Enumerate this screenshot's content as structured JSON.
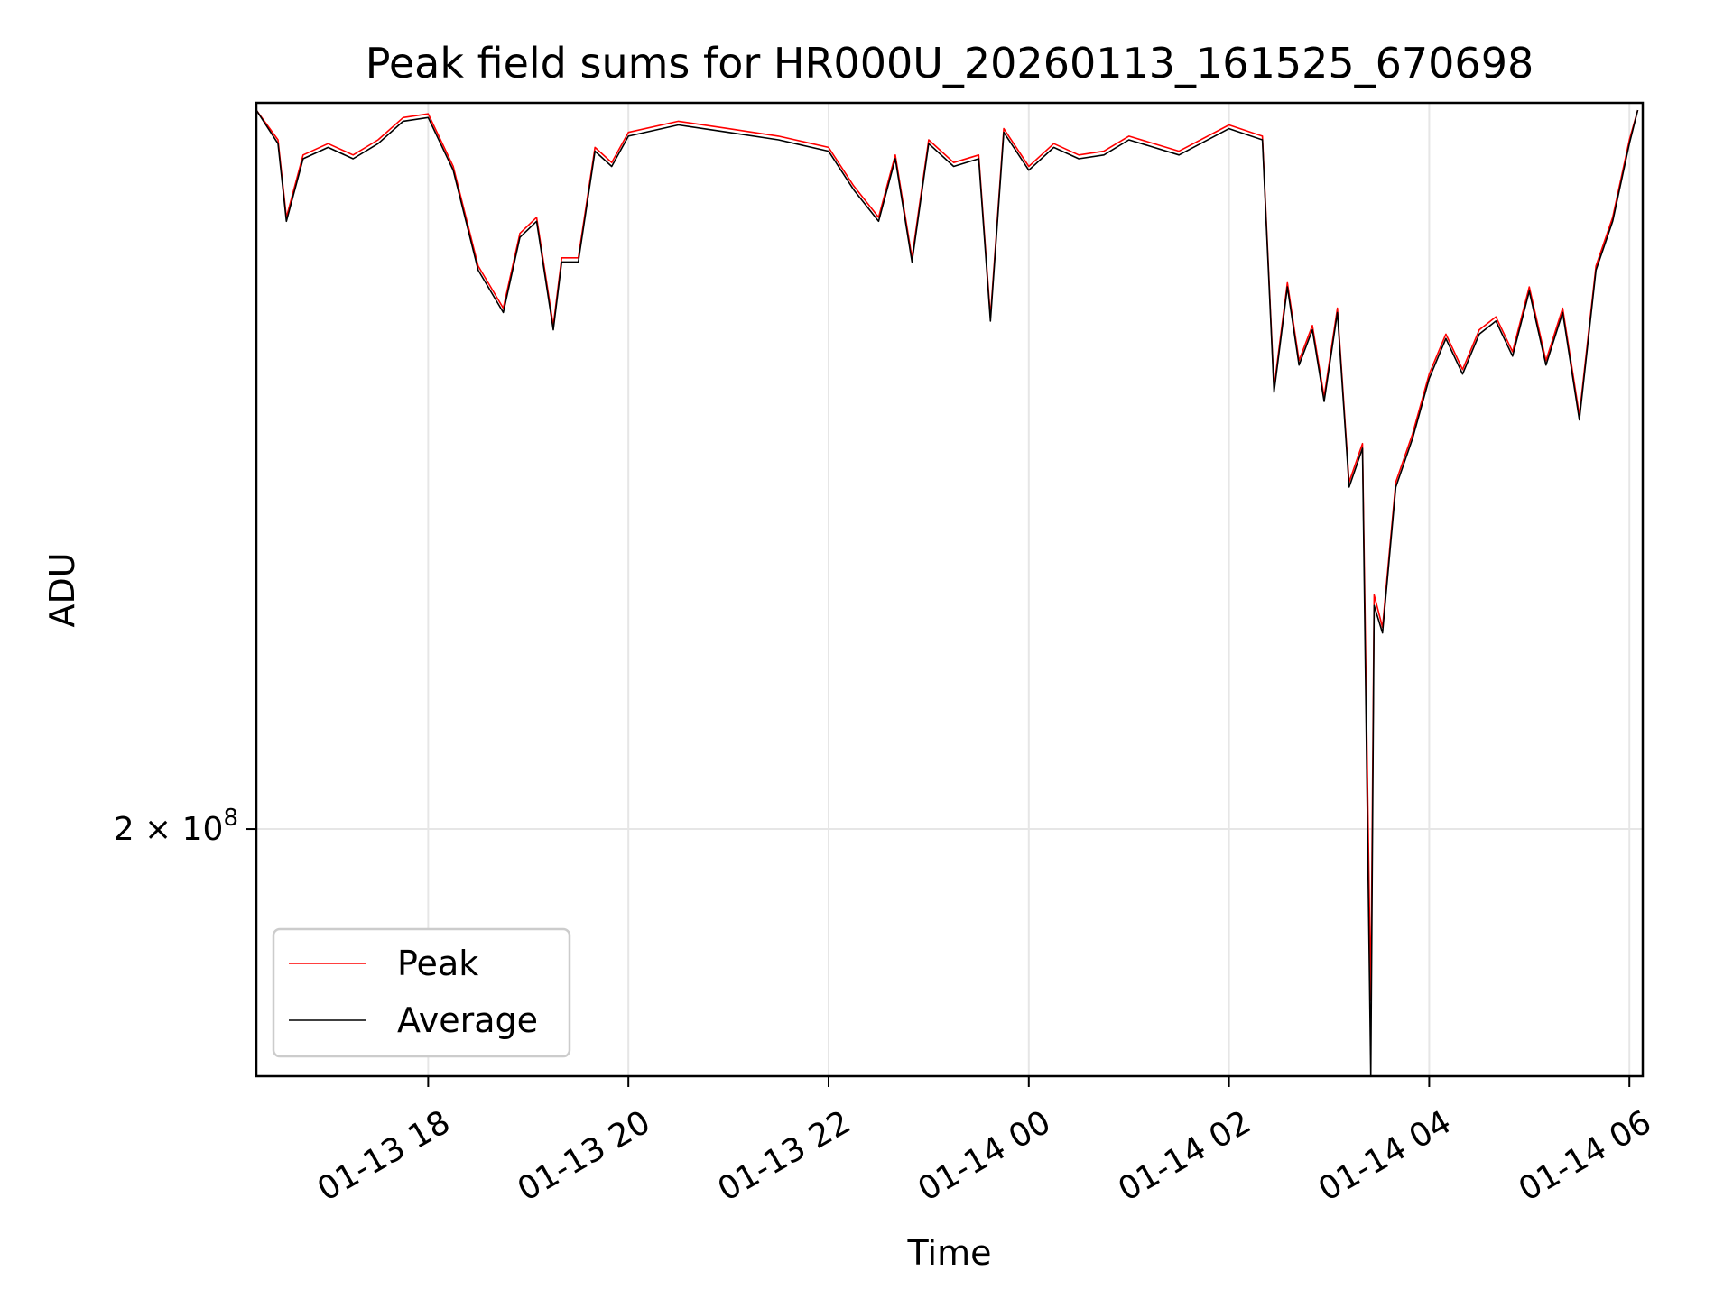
{
  "chart_data": {
    "type": "line",
    "title": "Peak field sums for HR000U_20260113_161525_670698",
    "xlabel": "Time",
    "ylabel": "ADU",
    "y_scale": "log",
    "y_ticks": [
      {
        "value": 200000000,
        "coef": "2",
        "base": "10",
        "exp": "8"
      }
    ],
    "x_ticks": [
      "01-13 18",
      "01-13 20",
      "01-13 22",
      "01-14 00",
      "01-14 02",
      "01-14 04",
      "01-14 06"
    ],
    "x_tick_times": [
      "2026-01-13T18:00",
      "2026-01-13T20:00",
      "2026-01-13T22:00",
      "2026-01-14T00:00",
      "2026-01-14T02:00",
      "2026-01-14T04:00",
      "2026-01-14T06:00"
    ],
    "xlim": [
      "2026-01-13T16:17",
      "2026-01-14T06:08"
    ],
    "ylim": [
      165000000,
      352000000
    ],
    "grid": true,
    "legend_position": "lower-left",
    "series": [
      {
        "name": "Peak",
        "color": "#ff0000",
        "x": [
          "2026-01-13T16:17",
          "2026-01-13T16:30",
          "2026-01-13T16:35",
          "2026-01-13T16:45",
          "2026-01-13T17:00",
          "2026-01-13T17:15",
          "2026-01-13T17:30",
          "2026-01-13T17:45",
          "2026-01-13T18:00",
          "2026-01-13T18:15",
          "2026-01-13T18:30",
          "2026-01-13T18:45",
          "2026-01-13T18:55",
          "2026-01-13T19:05",
          "2026-01-13T19:15",
          "2026-01-13T19:20",
          "2026-01-13T19:30",
          "2026-01-13T19:40",
          "2026-01-13T19:50",
          "2026-01-13T20:00",
          "2026-01-13T20:30",
          "2026-01-13T21:00",
          "2026-01-13T21:30",
          "2026-01-13T22:00",
          "2026-01-13T22:15",
          "2026-01-13T22:30",
          "2026-01-13T22:40",
          "2026-01-13T22:50",
          "2026-01-13T23:00",
          "2026-01-13T23:15",
          "2026-01-13T23:30",
          "2026-01-13T23:37",
          "2026-01-13T23:45",
          "2026-01-14T00:00",
          "2026-01-14T00:15",
          "2026-01-14T00:30",
          "2026-01-14T00:45",
          "2026-01-14T01:00",
          "2026-01-14T01:30",
          "2026-01-14T02:00",
          "2026-01-14T02:20",
          "2026-01-14T02:27",
          "2026-01-14T02:35",
          "2026-01-14T02:42",
          "2026-01-14T02:50",
          "2026-01-14T02:57",
          "2026-01-14T03:05",
          "2026-01-14T03:12",
          "2026-01-14T03:20",
          "2026-01-14T03:25",
          "2026-01-14T03:27",
          "2026-01-14T03:32",
          "2026-01-14T03:40",
          "2026-01-14T03:50",
          "2026-01-14T04:00",
          "2026-01-14T04:10",
          "2026-01-14T04:20",
          "2026-01-14T04:30",
          "2026-01-14T04:40",
          "2026-01-14T04:50",
          "2026-01-14T05:00",
          "2026-01-14T05:10",
          "2026-01-14T05:20",
          "2026-01-14T05:30",
          "2026-01-14T05:40",
          "2026-01-14T05:50",
          "2026-01-14T06:00",
          "2026-01-14T06:05"
        ],
        "values": [
          350000000,
          342000000,
          322000000,
          338000000,
          341000000,
          338000000,
          342000000,
          348000000,
          349000000,
          335000000,
          310000000,
          300000000,
          318000000,
          322000000,
          296000000,
          312000000,
          312000000,
          340000000,
          336000000,
          344000000,
          347000000,
          345000000,
          343000000,
          340000000,
          330000000,
          322000000,
          338000000,
          312000000,
          342000000,
          336000000,
          338000000,
          298000000,
          345000000,
          335000000,
          341000000,
          338000000,
          339000000,
          343000000,
          339000000,
          346000000,
          343000000,
          282000000,
          306000000,
          288000000,
          296000000,
          280000000,
          300000000,
          262000000,
          270000000,
          175000000,
          240000000,
          234000000,
          262000000,
          272000000,
          285000000,
          294000000,
          286000000,
          295000000,
          298000000,
          290000000,
          305000000,
          288000000,
          300000000,
          276000000,
          310000000,
          322000000,
          342000000,
          350000000
        ]
      },
      {
        "name": "Average",
        "color": "#000000",
        "x": [
          "2026-01-13T16:17",
          "2026-01-13T16:30",
          "2026-01-13T16:35",
          "2026-01-13T16:45",
          "2026-01-13T17:00",
          "2026-01-13T17:15",
          "2026-01-13T17:30",
          "2026-01-13T17:45",
          "2026-01-13T18:00",
          "2026-01-13T18:15",
          "2026-01-13T18:30",
          "2026-01-13T18:45",
          "2026-01-13T18:55",
          "2026-01-13T19:05",
          "2026-01-13T19:15",
          "2026-01-13T19:20",
          "2026-01-13T19:30",
          "2026-01-13T19:40",
          "2026-01-13T19:50",
          "2026-01-13T20:00",
          "2026-01-13T20:30",
          "2026-01-13T21:00",
          "2026-01-13T21:30",
          "2026-01-13T22:00",
          "2026-01-13T22:15",
          "2026-01-13T22:30",
          "2026-01-13T22:40",
          "2026-01-13T22:50",
          "2026-01-13T23:00",
          "2026-01-13T23:15",
          "2026-01-13T23:30",
          "2026-01-13T23:37",
          "2026-01-13T23:45",
          "2026-01-14T00:00",
          "2026-01-14T00:15",
          "2026-01-14T00:30",
          "2026-01-14T00:45",
          "2026-01-14T01:00",
          "2026-01-14T01:30",
          "2026-01-14T02:00",
          "2026-01-14T02:20",
          "2026-01-14T02:27",
          "2026-01-14T02:35",
          "2026-01-14T02:42",
          "2026-01-14T02:50",
          "2026-01-14T02:57",
          "2026-01-14T03:05",
          "2026-01-14T03:12",
          "2026-01-14T03:20",
          "2026-01-14T03:25",
          "2026-01-14T03:27",
          "2026-01-14T03:32",
          "2026-01-14T03:40",
          "2026-01-14T03:50",
          "2026-01-14T04:00",
          "2026-01-14T04:10",
          "2026-01-14T04:20",
          "2026-01-14T04:30",
          "2026-01-14T04:40",
          "2026-01-14T04:50",
          "2026-01-14T05:00",
          "2026-01-14T05:10",
          "2026-01-14T05:20",
          "2026-01-14T05:30",
          "2026-01-14T05:40",
          "2026-01-14T05:50",
          "2026-01-14T06:00",
          "2026-01-14T06:05"
        ],
        "values": [
          350000000,
          341000000,
          321000000,
          337000000,
          340000000,
          337000000,
          341000000,
          347000000,
          348000000,
          334000000,
          309000000,
          299000000,
          317000000,
          321000000,
          295000000,
          311000000,
          311000000,
          339000000,
          335000000,
          343000000,
          346000000,
          344000000,
          342000000,
          339000000,
          329000000,
          321000000,
          337000000,
          311000000,
          341000000,
          335000000,
          337000000,
          297000000,
          344000000,
          334000000,
          340000000,
          337000000,
          338000000,
          342000000,
          338000000,
          345000000,
          342000000,
          281000000,
          305000000,
          287000000,
          295000000,
          279000000,
          299000000,
          261000000,
          269000000,
          165000000,
          238000000,
          233000000,
          261000000,
          271000000,
          284000000,
          293000000,
          285000000,
          294000000,
          297000000,
          289000000,
          304000000,
          287000000,
          299000000,
          275000000,
          309000000,
          321000000,
          341000000,
          350000000
        ]
      }
    ]
  }
}
